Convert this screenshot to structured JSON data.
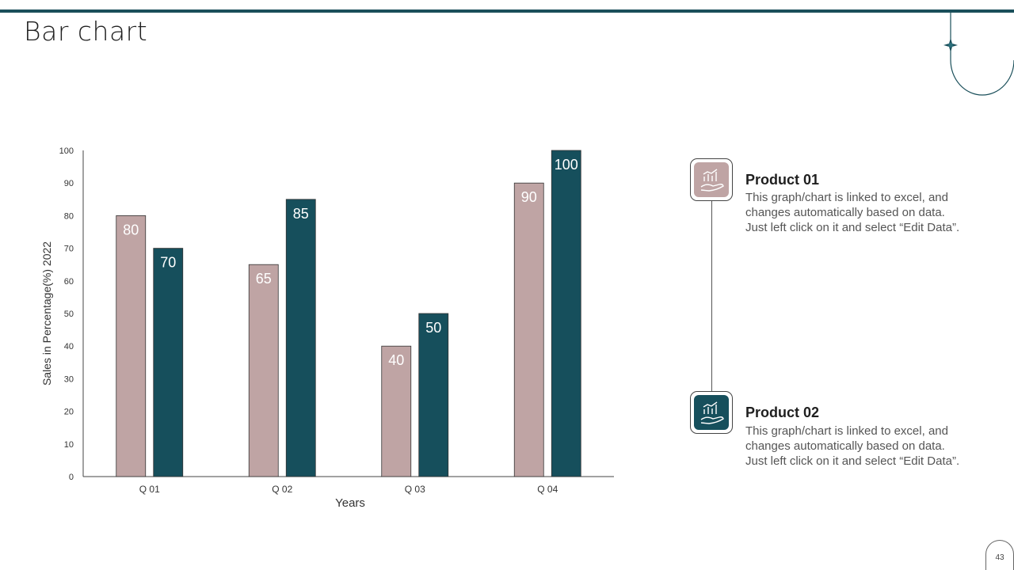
{
  "page": {
    "title": "Bar chart",
    "page_number": "43"
  },
  "colors": {
    "accent": "#1a4f5a",
    "product1": "#bfa4a4",
    "product2": "#164f5c"
  },
  "legend": [
    {
      "title": "Product 01",
      "lines": [
        "This graph/chart is linked to excel, and",
        "changes automatically based on data.",
        "Just left click on it and select “Edit Data”."
      ],
      "icon": "chart-hand-icon",
      "color": "#bfa4a4"
    },
    {
      "title": "Product 02",
      "lines": [
        "This graph/chart is linked to excel, and",
        "changes automatically based on data.",
        "Just left click on it and select “Edit Data”."
      ],
      "icon": "chart-hand-icon",
      "color": "#164f5c"
    }
  ],
  "chart_data": {
    "type": "bar",
    "title": "",
    "xlabel": "Years",
    "ylabel": "Sales in Percentage(%)  2022",
    "categories": [
      "Q 01",
      "Q 02",
      "Q 03",
      "Q 04"
    ],
    "series": [
      {
        "values": [
          80,
          65,
          40,
          90
        ],
        "color": "#bfa4a4"
      },
      {
        "values": [
          70,
          85,
          50,
          100
        ],
        "color": "#164f5c"
      }
    ],
    "ylim": [
      0,
      100
    ],
    "yticks": [
      "0",
      "10",
      "20",
      "30",
      "40",
      "50",
      "60",
      "70",
      "80",
      "90",
      "100"
    ],
    "data_labels": true,
    "grid": false
  }
}
